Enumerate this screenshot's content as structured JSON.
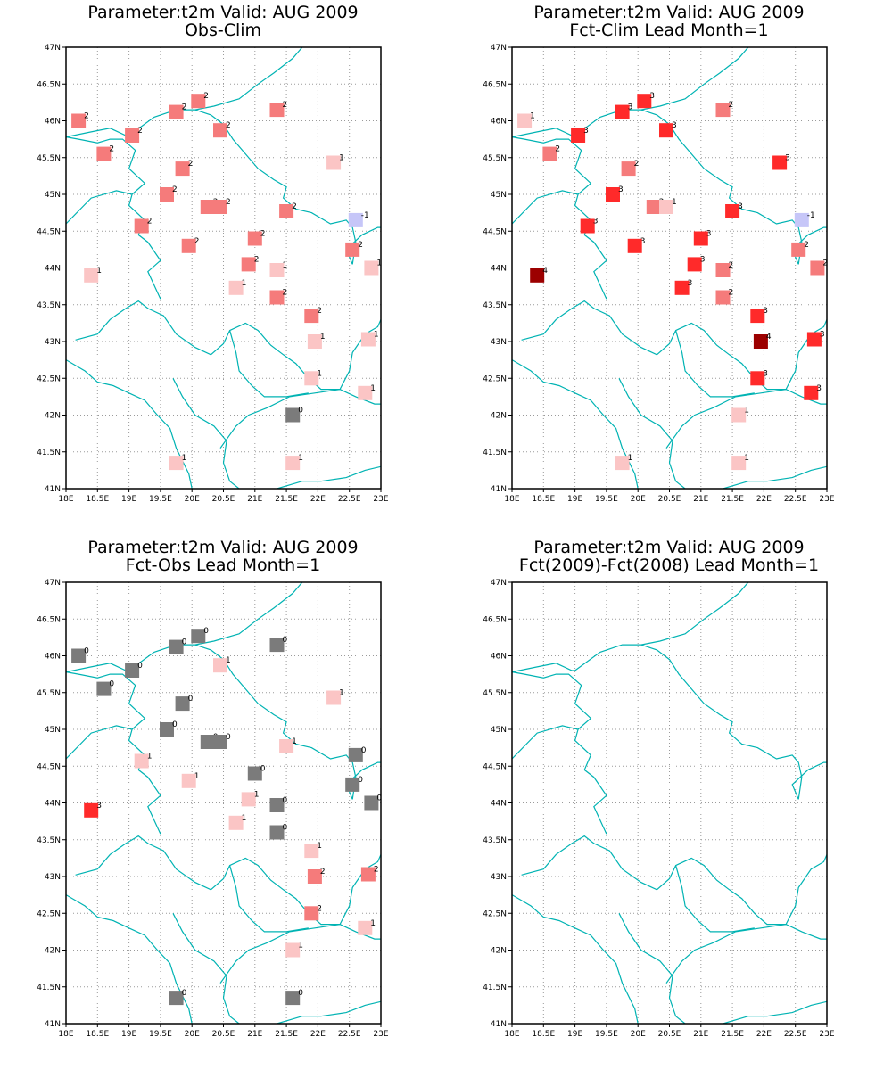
{
  "map": {
    "lon_range": [
      18,
      23
    ],
    "lat_range": [
      41,
      47
    ],
    "lon_ticks": [
      "18E",
      "18.5E",
      "19E",
      "19.5E",
      "20E",
      "20.5E",
      "21E",
      "21.5E",
      "22E",
      "22.5E",
      "23E"
    ],
    "lat_ticks": [
      "41N",
      "41.5N",
      "42N",
      "42.5N",
      "43N",
      "43.5N",
      "44N",
      "44.5N",
      "45N",
      "45.5N",
      "46N",
      "46.5N",
      "47N"
    ],
    "grid": "dotted",
    "border_color": "#00b3b3",
    "colors": {
      "-1": "#c6c6f8",
      "0": "#7b7b7b",
      "1": "#fbc5c5",
      "2": "#f57b7b",
      "3": "#ff2a2a",
      "4": "#9c0000"
    }
  },
  "panels": [
    {
      "title": "Parameter:t2m Valid: AUG 2009",
      "subtitle": "Obs-Clim",
      "points": [
        [
          18.2,
          46.0,
          2
        ],
        [
          18.6,
          45.55,
          2
        ],
        [
          19.05,
          45.8,
          2
        ],
        [
          19.2,
          44.57,
          2
        ],
        [
          19.6,
          45.0,
          2
        ],
        [
          19.75,
          46.12,
          2
        ],
        [
          19.85,
          45.35,
          2
        ],
        [
          19.95,
          44.3,
          2
        ],
        [
          20.1,
          46.27,
          2
        ],
        [
          20.25,
          44.83,
          2
        ],
        [
          20.45,
          44.83,
          2
        ],
        [
          20.45,
          45.87,
          2
        ],
        [
          20.7,
          43.73,
          1
        ],
        [
          20.9,
          44.05,
          2
        ],
        [
          21.0,
          44.4,
          2
        ],
        [
          21.35,
          46.15,
          2
        ],
        [
          21.35,
          43.97,
          1
        ],
        [
          21.35,
          43.6,
          2
        ],
        [
          21.5,
          44.77,
          2
        ],
        [
          21.6,
          42.0,
          0
        ],
        [
          21.6,
          41.35,
          1
        ],
        [
          21.9,
          43.35,
          2
        ],
        [
          21.9,
          42.5,
          1
        ],
        [
          21.95,
          43.0,
          1
        ],
        [
          22.25,
          45.43,
          1
        ],
        [
          22.55,
          44.25,
          2
        ],
        [
          22.6,
          44.65,
          -1
        ],
        [
          22.75,
          42.3,
          1
        ],
        [
          22.8,
          43.03,
          1
        ],
        [
          22.85,
          44.0,
          1
        ],
        [
          18.4,
          43.9,
          1
        ],
        [
          19.75,
          41.35,
          1
        ]
      ]
    },
    {
      "title": "Parameter:t2m Valid: AUG 2009",
      "subtitle": "Fct-Clim Lead Month=1",
      "points": [
        [
          18.2,
          46.0,
          1
        ],
        [
          18.6,
          45.55,
          2
        ],
        [
          19.05,
          45.8,
          3
        ],
        [
          19.2,
          44.57,
          3
        ],
        [
          19.6,
          45.0,
          3
        ],
        [
          19.75,
          46.12,
          3
        ],
        [
          19.85,
          45.35,
          2
        ],
        [
          19.95,
          44.3,
          3
        ],
        [
          20.1,
          46.27,
          3
        ],
        [
          20.25,
          44.83,
          2
        ],
        [
          20.45,
          44.83,
          1
        ],
        [
          20.45,
          45.87,
          3
        ],
        [
          20.7,
          43.73,
          3
        ],
        [
          20.9,
          44.05,
          3
        ],
        [
          21.0,
          44.4,
          3
        ],
        [
          21.35,
          46.15,
          2
        ],
        [
          21.35,
          43.97,
          2
        ],
        [
          21.35,
          43.6,
          2
        ],
        [
          21.5,
          44.77,
          3
        ],
        [
          21.6,
          42.0,
          1
        ],
        [
          21.6,
          41.35,
          1
        ],
        [
          21.9,
          43.35,
          3
        ],
        [
          21.9,
          42.5,
          3
        ],
        [
          21.95,
          43.0,
          4
        ],
        [
          22.25,
          45.43,
          3
        ],
        [
          22.55,
          44.25,
          2
        ],
        [
          22.6,
          44.65,
          -1
        ],
        [
          22.75,
          42.3,
          3
        ],
        [
          22.8,
          43.03,
          3
        ],
        [
          22.85,
          44.0,
          2
        ],
        [
          18.4,
          43.9,
          4
        ],
        [
          19.75,
          41.35,
          1
        ]
      ]
    },
    {
      "title": "Parameter:t2m Valid: AUG 2009",
      "subtitle": "Fct-Obs Lead Month=1",
      "points": [
        [
          18.2,
          46.0,
          0
        ],
        [
          18.6,
          45.55,
          0
        ],
        [
          19.05,
          45.8,
          0
        ],
        [
          19.2,
          44.57,
          1
        ],
        [
          19.6,
          45.0,
          0
        ],
        [
          19.75,
          46.12,
          0
        ],
        [
          19.85,
          45.35,
          0
        ],
        [
          19.95,
          44.3,
          1
        ],
        [
          20.1,
          46.27,
          0
        ],
        [
          20.25,
          44.83,
          0
        ],
        [
          20.45,
          44.83,
          0
        ],
        [
          20.45,
          45.87,
          1
        ],
        [
          20.7,
          43.73,
          1
        ],
        [
          20.9,
          44.05,
          1
        ],
        [
          21.0,
          44.4,
          0
        ],
        [
          21.35,
          46.15,
          0
        ],
        [
          21.35,
          43.97,
          0
        ],
        [
          21.35,
          43.6,
          0
        ],
        [
          21.5,
          44.77,
          1
        ],
        [
          21.6,
          42.0,
          1
        ],
        [
          21.6,
          41.35,
          0
        ],
        [
          21.9,
          43.35,
          1
        ],
        [
          21.9,
          42.5,
          2
        ],
        [
          21.95,
          43.0,
          2
        ],
        [
          22.25,
          45.43,
          1
        ],
        [
          22.55,
          44.25,
          0
        ],
        [
          22.6,
          44.65,
          0
        ],
        [
          22.75,
          42.3,
          1
        ],
        [
          22.8,
          43.03,
          2
        ],
        [
          22.85,
          44.0,
          0
        ],
        [
          18.4,
          43.9,
          3
        ],
        [
          19.75,
          41.35,
          0
        ]
      ]
    },
    {
      "title": "Parameter:t2m Valid: AUG 2009",
      "subtitle": "Fct(2009)-Fct(2008) Lead Month=1",
      "points": []
    }
  ],
  "borders": [
    [
      [
        18.0,
        44.6
      ],
      [
        18.4,
        44.95
      ],
      [
        18.8,
        45.05
      ],
      [
        19.05,
        45.0
      ],
      [
        19.25,
        45.15
      ],
      [
        19.0,
        45.35
      ],
      [
        19.1,
        45.6
      ],
      [
        18.9,
        45.75
      ],
      [
        18.7,
        45.75
      ],
      [
        18.5,
        45.7
      ],
      [
        18.2,
        45.75
      ],
      [
        18.0,
        45.78
      ]
    ],
    [
      [
        18.0,
        42.75
      ],
      [
        18.3,
        42.6
      ],
      [
        18.5,
        42.45
      ],
      [
        18.75,
        42.4
      ],
      [
        19.0,
        42.3
      ],
      [
        19.25,
        42.2
      ],
      [
        19.45,
        42.0
      ],
      [
        19.65,
        41.82
      ],
      [
        19.75,
        41.55
      ],
      [
        19.95,
        41.2
      ],
      [
        20.0,
        41.0
      ]
    ],
    [
      [
        18.15,
        43.02
      ],
      [
        18.5,
        43.1
      ],
      [
        18.7,
        43.3
      ],
      [
        18.95,
        43.45
      ],
      [
        19.15,
        43.55
      ],
      [
        19.3,
        43.45
      ],
      [
        19.55,
        43.35
      ],
      [
        19.75,
        43.1
      ],
      [
        20.05,
        42.92
      ],
      [
        20.3,
        42.82
      ],
      [
        20.5,
        42.97
      ],
      [
        20.6,
        43.15
      ],
      [
        20.85,
        43.25
      ],
      [
        21.05,
        43.15
      ],
      [
        21.25,
        42.95
      ],
      [
        21.45,
        42.82
      ],
      [
        21.65,
        42.7
      ],
      [
        21.85,
        42.5
      ],
      [
        22.05,
        42.35
      ],
      [
        22.35,
        42.35
      ]
    ],
    [
      [
        19.5,
        43.58
      ],
      [
        19.3,
        43.95
      ],
      [
        19.5,
        44.1
      ],
      [
        19.3,
        44.35
      ],
      [
        19.15,
        44.45
      ],
      [
        19.25,
        44.65
      ],
      [
        19.0,
        44.85
      ],
      [
        19.05,
        45.0
      ]
    ],
    [
      [
        19.7,
        42.5
      ],
      [
        19.85,
        42.25
      ],
      [
        20.05,
        42.0
      ],
      [
        20.35,
        41.85
      ],
      [
        20.55,
        41.65
      ],
      [
        20.5,
        41.35
      ],
      [
        20.6,
        41.1
      ],
      [
        20.75,
        41.0
      ]
    ],
    [
      [
        20.6,
        43.15
      ],
      [
        20.7,
        42.85
      ],
      [
        20.75,
        42.6
      ],
      [
        20.95,
        42.4
      ],
      [
        21.15,
        42.25
      ],
      [
        21.5,
        42.25
      ],
      [
        21.85,
        42.3
      ]
    ],
    [
      [
        20.45,
        41.55
      ],
      [
        20.7,
        41.85
      ],
      [
        20.9,
        42.0
      ],
      [
        21.2,
        42.1
      ],
      [
        21.55,
        42.25
      ],
      [
        21.95,
        42.3
      ],
      [
        22.35,
        42.35
      ],
      [
        22.6,
        42.25
      ],
      [
        22.9,
        42.15
      ],
      [
        23.0,
        42.15
      ]
    ],
    [
      [
        21.35,
        41.0
      ],
      [
        21.75,
        41.1
      ],
      [
        22.05,
        41.1
      ],
      [
        22.45,
        41.15
      ],
      [
        22.75,
        41.25
      ],
      [
        23.0,
        41.3
      ]
    ],
    [
      [
        22.35,
        42.35
      ],
      [
        22.5,
        42.6
      ],
      [
        22.55,
        42.85
      ],
      [
        22.75,
        43.1
      ],
      [
        22.95,
        43.2
      ],
      [
        23.0,
        43.3
      ]
    ],
    [
      [
        22.55,
        44.05
      ],
      [
        22.45,
        44.25
      ],
      [
        22.7,
        44.45
      ],
      [
        22.95,
        44.55
      ],
      [
        23.0,
        44.55
      ]
    ],
    [
      [
        19.0,
        45.8
      ],
      [
        19.4,
        46.05
      ],
      [
        19.75,
        46.15
      ],
      [
        20.05,
        46.15
      ],
      [
        20.3,
        46.08
      ],
      [
        20.5,
        45.95
      ],
      [
        20.65,
        45.75
      ],
      [
        20.85,
        45.55
      ],
      [
        21.05,
        45.35
      ],
      [
        21.3,
        45.2
      ],
      [
        21.5,
        45.1
      ],
      [
        21.45,
        44.95
      ],
      [
        21.65,
        44.8
      ],
      [
        21.9,
        44.75
      ],
      [
        22.2,
        44.6
      ],
      [
        22.45,
        44.65
      ],
      [
        22.55,
        44.55
      ],
      [
        22.6,
        44.35
      ],
      [
        22.55,
        44.05
      ]
    ],
    [
      [
        20.05,
        46.15
      ],
      [
        20.35,
        46.2
      ],
      [
        20.75,
        46.3
      ],
      [
        21.05,
        46.5
      ],
      [
        21.3,
        46.65
      ],
      [
        21.6,
        46.85
      ],
      [
        21.75,
        47.0
      ]
    ],
    [
      [
        18.0,
        45.78
      ],
      [
        18.4,
        45.85
      ],
      [
        18.7,
        45.9
      ],
      [
        18.95,
        45.8
      ],
      [
        19.0,
        45.8
      ]
    ]
  ]
}
